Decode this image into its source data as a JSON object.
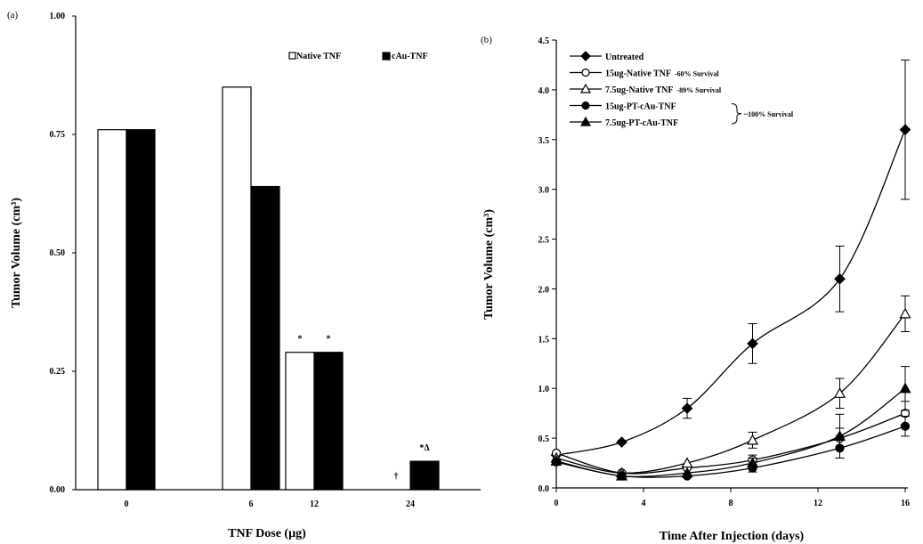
{
  "chart_data": [
    {
      "panel": "(a)",
      "type": "bar",
      "xlabel": "TNF Dose (µg)",
      "ylabel": "Tumor Volume (cm³)",
      "ylim": [
        0,
        1.0
      ],
      "yticks": [
        "0.00",
        "0.25",
        "0.50",
        "0.75",
        "1.00"
      ],
      "categories": [
        "0",
        "6",
        "12",
        "24"
      ],
      "series": [
        {
          "name": "Native TNF",
          "values": [
            0.76,
            0.85,
            0.29,
            0.0
          ],
          "style": "open"
        },
        {
          "name": "cAu-TNF",
          "values": [
            0.76,
            0.64,
            0.29,
            0.06
          ],
          "style": "filled"
        }
      ],
      "annotations": [
        {
          "category": "12",
          "series": "Native TNF",
          "text": "*"
        },
        {
          "category": "12",
          "series": "cAu-TNF",
          "text": "*"
        },
        {
          "category": "24",
          "series": "Native TNF",
          "text": "†"
        },
        {
          "category": "24",
          "series": "cAu-TNF",
          "text": "*Δ"
        }
      ],
      "legend": "top-right",
      "grid": false
    },
    {
      "panel": "(b)",
      "type": "line",
      "xlabel": "Time After Injection  (days)",
      "ylabel": "Tumor Volume (cm³)",
      "xlim": [
        0,
        16
      ],
      "ylim": [
        0,
        4.5
      ],
      "xticks": [
        "0",
        "4",
        "8",
        "12",
        "16"
      ],
      "yticks": [
        "0.0",
        "0.5",
        "1.0",
        "1.5",
        "2.0",
        "2.5",
        "3.0",
        "3.5",
        "4.0",
        "4.5"
      ],
      "x": [
        0,
        3,
        6,
        9,
        13,
        16
      ],
      "series": [
        {
          "name": "Untreated",
          "marker": "diamond-filled",
          "values": [
            0.33,
            0.46,
            0.8,
            1.45,
            2.1,
            3.6
          ],
          "errors": [
            0,
            0,
            0.1,
            0.2,
            0.33,
            0.7
          ]
        },
        {
          "name": "15ug-Native TNF",
          "note": "-60% Survival",
          "marker": "circle-open",
          "values": [
            0.35,
            0.15,
            0.2,
            0.28,
            0.5,
            0.75
          ],
          "errors": [
            0,
            0,
            0,
            0.05,
            0.1,
            0.12
          ]
        },
        {
          "name": "7.5ug-Native TNF",
          "note": "-89% Survival",
          "marker": "triangle-open",
          "values": [
            0.3,
            0.15,
            0.25,
            0.48,
            0.95,
            1.75
          ],
          "errors": [
            0,
            0,
            0,
            0.08,
            0.15,
            0.18
          ]
        },
        {
          "name": "15ug-PT-cAu-TNF",
          "marker": "circle-filled",
          "values": [
            0.26,
            0.12,
            0.12,
            0.2,
            0.4,
            0.62
          ],
          "errors": [
            0,
            0,
            0,
            0.04,
            0.1,
            0.1
          ]
        },
        {
          "name": "7.5ug-PT-cAu-TNF",
          "marker": "triangle-filled",
          "values": [
            0.27,
            0.12,
            0.15,
            0.25,
            0.52,
            1.0
          ],
          "errors": [
            0,
            0,
            0,
            0.05,
            0.22,
            0.22
          ]
        }
      ],
      "group_note": "100% Survival",
      "legend": "top-left",
      "grid": false
    }
  ]
}
